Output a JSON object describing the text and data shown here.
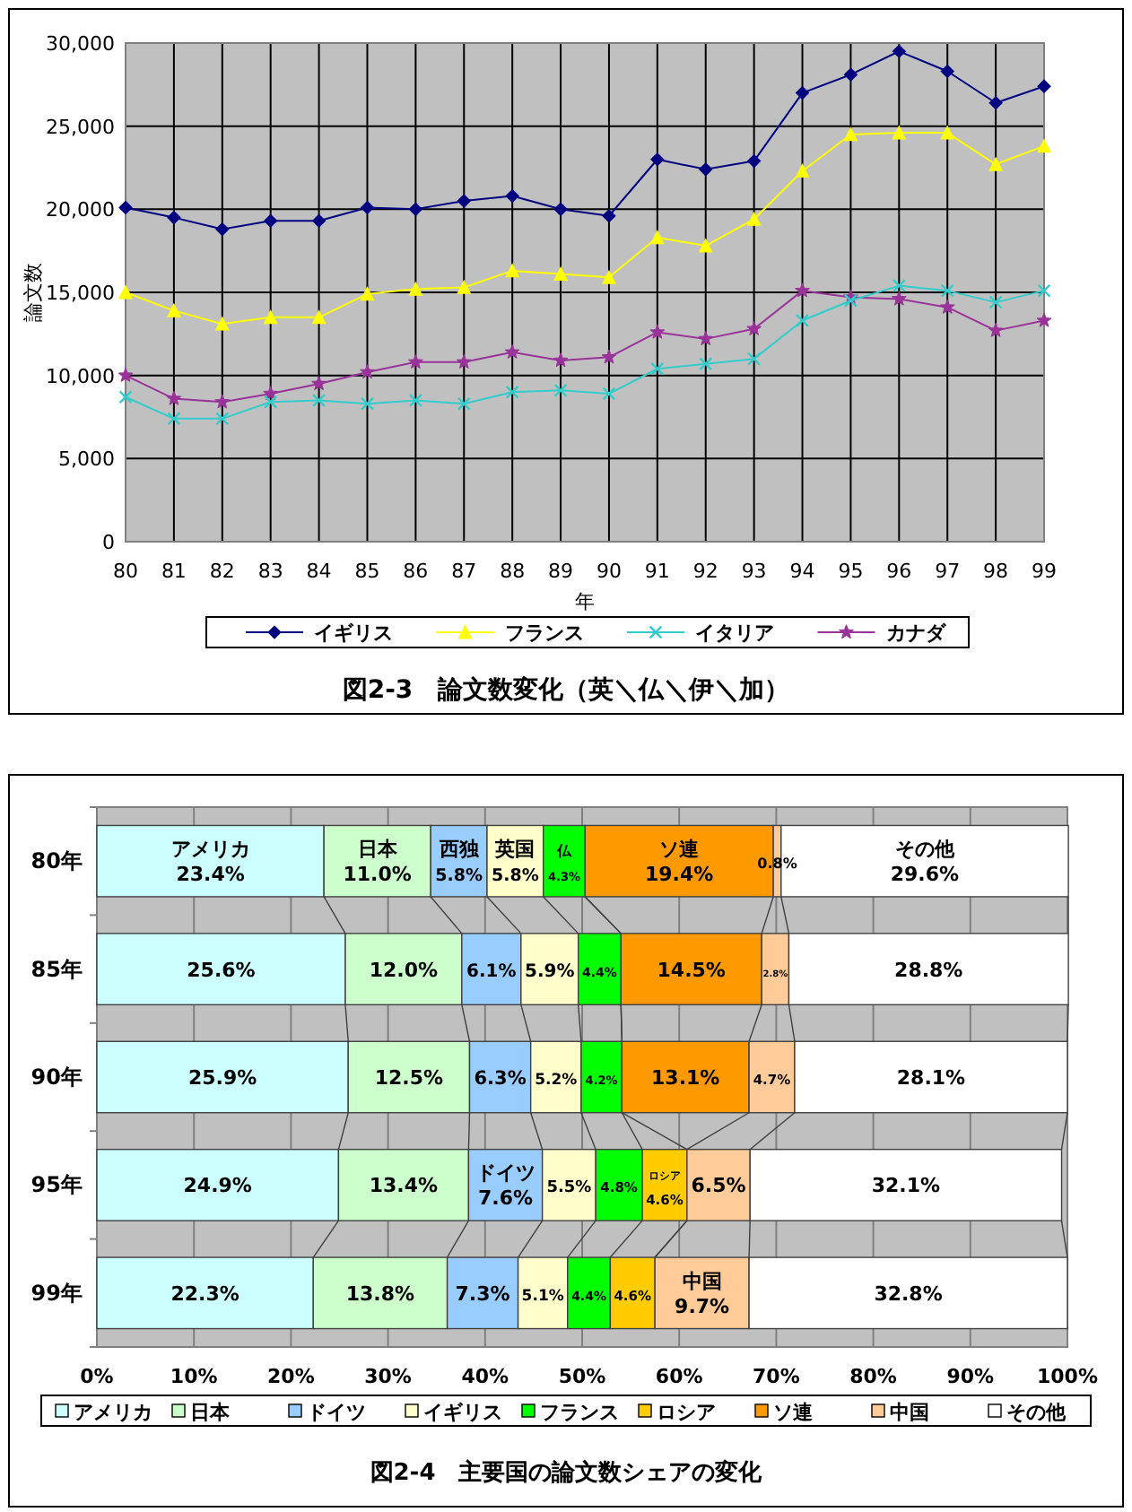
{
  "chart_data": [
    {
      "type": "line",
      "title": "図2-3　論文数変化（英＼仏＼伊＼加）",
      "xlabel": "年",
      "ylabel": "論文数",
      "categories": [
        "80",
        "81",
        "82",
        "83",
        "84",
        "85",
        "86",
        "87",
        "88",
        "89",
        "90",
        "91",
        "92",
        "93",
        "94",
        "95",
        "96",
        "97",
        "98",
        "99"
      ],
      "ylim": [
        0,
        30000
      ],
      "yticks": [
        0,
        {
          "value": 5000,
          "label": "5,000"
        },
        {
          "value": 10000,
          "label": "10,000"
        },
        {
          "value": 15000,
          "label": "15,000"
        },
        {
          "value": 20000,
          "label": "20,000"
        },
        {
          "value": 25000,
          "label": "25,000"
        },
        {
          "value": 30000,
          "label": "30,000"
        }
      ],
      "grid": true,
      "legend": "bottom",
      "series": [
        {
          "name": "イギリス",
          "color": "#000080",
          "marker": "diamond",
          "values": [
            20100,
            19500,
            18800,
            19300,
            19300,
            20100,
            20000,
            20500,
            20800,
            20000,
            19600,
            23000,
            22400,
            22900,
            27000,
            28100,
            29500,
            28300,
            26400,
            27400
          ]
        },
        {
          "name": "フランス",
          "color": "#ffff00",
          "marker": "triangle",
          "values": [
            15000,
            13900,
            13100,
            13500,
            13500,
            14900,
            15200,
            15300,
            16300,
            16100,
            15900,
            18300,
            17800,
            19400,
            22300,
            24500,
            24600,
            24600,
            22700,
            23800
          ]
        },
        {
          "name": "イタリア",
          "color": "#33cccc",
          "marker": "cross",
          "values": [
            8700,
            7400,
            7400,
            8400,
            8500,
            8300,
            8500,
            8300,
            9000,
            9100,
            8900,
            10400,
            10700,
            11000,
            13300,
            14500,
            15400,
            15100,
            14400,
            15100
          ]
        },
        {
          "name": "カナダ",
          "color": "#993399",
          "marker": "star",
          "values": [
            10000,
            8600,
            8400,
            8900,
            9500,
            10200,
            10800,
            10800,
            11400,
            10900,
            11100,
            12600,
            12200,
            12800,
            15100,
            14700,
            14600,
            14100,
            12700,
            13300
          ]
        }
      ]
    },
    {
      "type": "bar",
      "orientation": "horizontal",
      "stacked": true,
      "title": "図2-4　主要国の論文数シェアの変化",
      "categories": [
        "80年",
        "85年",
        "90年",
        "95年",
        "99年"
      ],
      "xlim": [
        0,
        100
      ],
      "xticks": [
        {
          "value": 0,
          "label": "0%"
        },
        {
          "value": 10,
          "label": "10%"
        },
        {
          "value": 20,
          "label": "20%"
        },
        {
          "value": 30,
          "label": "30%"
        },
        {
          "value": 40,
          "label": "40%"
        },
        {
          "value": 50,
          "label": "50%"
        },
        {
          "value": 60,
          "label": "60%"
        },
        {
          "value": 70,
          "label": "70%"
        },
        {
          "value": 80,
          "label": "80%"
        },
        {
          "value": 90,
          "label": "90%"
        },
        {
          "value": 100,
          "label": "100%"
        }
      ],
      "grid": "x",
      "legend": "bottom",
      "series": [
        {
          "name": "アメリカ",
          "color": "#ccffff",
          "values": [
            23.4,
            25.6,
            25.9,
            24.9,
            22.3
          ],
          "value_labels": [
            "アメリカ\n23.4%",
            "25.6%",
            "25.9%",
            "24.9%",
            "22.3%"
          ]
        },
        {
          "name": "日本",
          "color": "#ccffcc",
          "values": [
            11.0,
            12.0,
            12.5,
            13.4,
            13.8
          ],
          "value_labels": [
            "日本\n11.0%",
            "12.0%",
            "12.5%",
            "13.4%",
            "13.8%"
          ]
        },
        {
          "name": "ドイツ",
          "color": "#99ccff",
          "values": [
            5.8,
            6.1,
            6.3,
            7.6,
            7.3
          ],
          "value_labels": [
            "西独\n5.8%",
            "6.1%",
            "6.3%",
            "ドイツ\n7.6%",
            "7.3%"
          ]
        },
        {
          "name": "イギリス",
          "color": "#ffffcc",
          "values": [
            5.8,
            5.9,
            5.2,
            5.5,
            5.1
          ],
          "value_labels": [
            "英国\n5.8%",
            "5.9%",
            "5.2%",
            "5.5%",
            "5.1%"
          ]
        },
        {
          "name": "フランス",
          "color": "#00ff00",
          "values": [
            4.3,
            4.4,
            4.2,
            4.8,
            4.4
          ],
          "value_labels": [
            "仏\n4.3%",
            "4.4%",
            "4.2%",
            "4.8%",
            "4.4%"
          ]
        },
        {
          "name": "ロシア",
          "color": "#ffcc00",
          "values": [
            null,
            null,
            null,
            4.6,
            4.6
          ],
          "value_labels": [
            null,
            null,
            null,
            "ロシア\n4.6%",
            "4.6%"
          ]
        },
        {
          "name": "ソ連",
          "color": "#ff9900",
          "values": [
            19.4,
            14.5,
            13.1,
            null,
            null
          ],
          "value_labels": [
            "ソ連\n19.4%",
            "14.5%",
            "13.1%",
            null,
            null
          ]
        },
        {
          "name": "中国",
          "color": "#ffcc99",
          "values": [
            0.8,
            2.8,
            4.7,
            6.5,
            9.7
          ],
          "value_labels": [
            "0.8%",
            "2.8%",
            "4.7%",
            "6.5%",
            "中国\n9.7%"
          ]
        },
        {
          "name": "その他",
          "color": "#ffffff",
          "values": [
            29.6,
            28.8,
            28.1,
            32.1,
            32.8
          ],
          "value_labels": [
            "その他\n29.6%",
            "28.8%",
            "28.1%",
            "32.1%",
            "32.8%"
          ]
        }
      ]
    }
  ]
}
